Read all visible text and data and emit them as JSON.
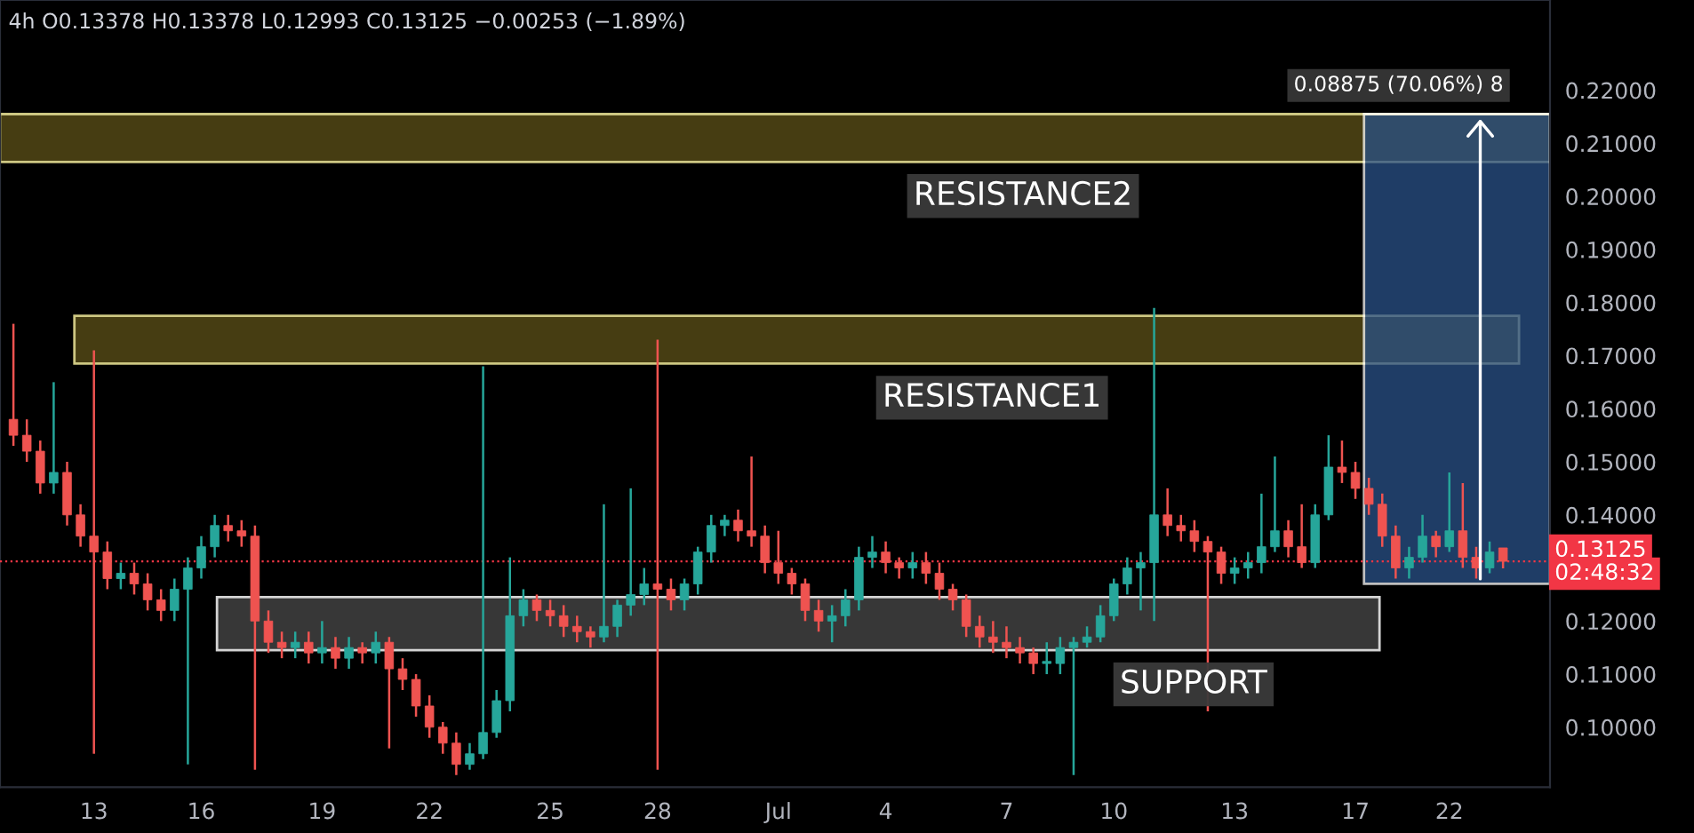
{
  "chart_data": {
    "type": "candlestick",
    "title": "4h O0.13378 H0.13378 L0.12993 C0.13125 −0.00253 (−1.89%)",
    "categories": [
      null,
      null,
      null,
      null,
      null,
      null,
      "13",
      null,
      null,
      null,
      null,
      null,
      null,
      null,
      "16",
      null,
      null,
      null,
      null,
      null,
      null,
      null,
      null,
      "19",
      null,
      null,
      null,
      null,
      null,
      null,
      null,
      "22",
      null,
      null,
      null,
      null,
      null,
      null,
      null,
      null,
      "25",
      null,
      null,
      null,
      null,
      null,
      null,
      null,
      "28",
      null,
      null,
      null,
      null,
      null,
      null,
      null,
      null,
      "Jul",
      null,
      null,
      null,
      null,
      null,
      null,
      null,
      "4",
      null,
      null,
      null,
      null,
      null,
      null,
      null,
      null,
      "7",
      null,
      null,
      null,
      null,
      null,
      null,
      null,
      "10",
      null,
      null,
      null,
      null,
      null,
      null,
      null,
      null,
      "13",
      null,
      null,
      null,
      null,
      null,
      null,
      null,
      null,
      "17",
      null,
      null,
      null,
      null,
      null,
      null,
      "22",
      null,
      null,
      null,
      null
    ],
    "ohlc": [
      [
        0.158,
        0.176,
        0.153,
        0.155
      ],
      [
        0.155,
        0.158,
        0.15,
        0.152
      ],
      [
        0.152,
        0.154,
        0.144,
        0.146
      ],
      [
        0.146,
        0.165,
        0.144,
        0.148
      ],
      [
        0.148,
        0.15,
        0.138,
        0.14
      ],
      [
        0.14,
        0.142,
        0.134,
        0.136
      ],
      [
        0.136,
        0.171,
        0.095,
        0.133
      ],
      [
        0.133,
        0.135,
        0.126,
        0.128
      ],
      [
        0.128,
        0.131,
        0.126,
        0.129
      ],
      [
        0.129,
        0.131,
        0.125,
        0.127
      ],
      [
        0.127,
        0.129,
        0.122,
        0.124
      ],
      [
        0.124,
        0.126,
        0.12,
        0.122
      ],
      [
        0.122,
        0.128,
        0.12,
        0.126
      ],
      [
        0.126,
        0.132,
        0.093,
        0.13
      ],
      [
        0.13,
        0.136,
        0.128,
        0.134
      ],
      [
        0.134,
        0.14,
        0.132,
        0.138
      ],
      [
        0.138,
        0.14,
        0.135,
        0.137
      ],
      [
        0.137,
        0.139,
        0.134,
        0.136
      ],
      [
        0.136,
        0.138,
        0.092,
        0.12
      ],
      [
        0.12,
        0.122,
        0.114,
        0.116
      ],
      [
        0.116,
        0.118,
        0.113,
        0.115
      ],
      [
        0.115,
        0.118,
        0.113,
        0.116
      ],
      [
        0.116,
        0.118,
        0.112,
        0.114
      ],
      [
        0.114,
        0.12,
        0.112,
        0.115
      ],
      [
        0.115,
        0.117,
        0.111,
        0.113
      ],
      [
        0.113,
        0.117,
        0.111,
        0.115
      ],
      [
        0.115,
        0.116,
        0.112,
        0.114
      ],
      [
        0.114,
        0.118,
        0.112,
        0.116
      ],
      [
        0.116,
        0.117,
        0.096,
        0.111
      ],
      [
        0.111,
        0.113,
        0.107,
        0.109
      ],
      [
        0.109,
        0.11,
        0.102,
        0.104
      ],
      [
        0.104,
        0.106,
        0.098,
        0.1
      ],
      [
        0.1,
        0.101,
        0.095,
        0.097
      ],
      [
        0.097,
        0.099,
        0.091,
        0.093
      ],
      [
        0.093,
        0.097,
        0.092,
        0.095
      ],
      [
        0.095,
        0.168,
        0.094,
        0.099
      ],
      [
        0.099,
        0.107,
        0.098,
        0.105
      ],
      [
        0.105,
        0.132,
        0.103,
        0.121
      ],
      [
        0.121,
        0.126,
        0.119,
        0.124
      ],
      [
        0.124,
        0.125,
        0.12,
        0.122
      ],
      [
        0.122,
        0.124,
        0.119,
        0.121
      ],
      [
        0.121,
        0.123,
        0.117,
        0.119
      ],
      [
        0.119,
        0.121,
        0.116,
        0.118
      ],
      [
        0.118,
        0.119,
        0.115,
        0.117
      ],
      [
        0.117,
        0.142,
        0.116,
        0.119
      ],
      [
        0.119,
        0.124,
        0.117,
        0.123
      ],
      [
        0.123,
        0.145,
        0.121,
        0.125
      ],
      [
        0.125,
        0.13,
        0.123,
        0.127
      ],
      [
        0.127,
        0.173,
        0.092,
        0.126
      ],
      [
        0.126,
        0.128,
        0.122,
        0.124
      ],
      [
        0.124,
        0.128,
        0.122,
        0.127
      ],
      [
        0.127,
        0.134,
        0.125,
        0.133
      ],
      [
        0.133,
        0.14,
        0.131,
        0.138
      ],
      [
        0.138,
        0.14,
        0.136,
        0.139
      ],
      [
        0.139,
        0.141,
        0.135,
        0.137
      ],
      [
        0.137,
        0.151,
        0.134,
        0.136
      ],
      [
        0.136,
        0.138,
        0.129,
        0.131
      ],
      [
        0.131,
        0.137,
        0.127,
        0.129
      ],
      [
        0.129,
        0.13,
        0.125,
        0.127
      ],
      [
        0.127,
        0.128,
        0.12,
        0.122
      ],
      [
        0.122,
        0.124,
        0.118,
        0.12
      ],
      [
        0.12,
        0.123,
        0.116,
        0.121
      ],
      [
        0.121,
        0.126,
        0.119,
        0.124
      ],
      [
        0.124,
        0.134,
        0.122,
        0.132
      ],
      [
        0.132,
        0.136,
        0.13,
        0.133
      ],
      [
        0.133,
        0.135,
        0.129,
        0.131
      ],
      [
        0.131,
        0.132,
        0.128,
        0.13
      ],
      [
        0.13,
        0.133,
        0.128,
        0.131
      ],
      [
        0.131,
        0.133,
        0.127,
        0.129
      ],
      [
        0.129,
        0.131,
        0.124,
        0.126
      ],
      [
        0.126,
        0.127,
        0.122,
        0.124
      ],
      [
        0.124,
        0.125,
        0.117,
        0.119
      ],
      [
        0.119,
        0.121,
        0.115,
        0.117
      ],
      [
        0.117,
        0.12,
        0.114,
        0.116
      ],
      [
        0.116,
        0.119,
        0.113,
        0.115
      ],
      [
        0.115,
        0.117,
        0.112,
        0.114
      ],
      [
        0.114,
        0.115,
        0.11,
        0.112
      ],
      [
        0.112,
        0.116,
        0.11,
        0.112
      ],
      [
        0.112,
        0.117,
        0.11,
        0.115
      ],
      [
        0.115,
        0.117,
        0.091,
        0.116
      ],
      [
        0.116,
        0.119,
        0.115,
        0.117
      ],
      [
        0.117,
        0.123,
        0.116,
        0.121
      ],
      [
        0.121,
        0.128,
        0.12,
        0.127
      ],
      [
        0.127,
        0.132,
        0.125,
        0.13
      ],
      [
        0.13,
        0.133,
        0.122,
        0.131
      ],
      [
        0.131,
        0.179,
        0.12,
        0.14
      ],
      [
        0.14,
        0.145,
        0.136,
        0.138
      ],
      [
        0.138,
        0.14,
        0.135,
        0.137
      ],
      [
        0.137,
        0.139,
        0.133,
        0.135
      ],
      [
        0.135,
        0.136,
        0.103,
        0.133
      ],
      [
        0.133,
        0.134,
        0.127,
        0.129
      ],
      [
        0.129,
        0.132,
        0.127,
        0.13
      ],
      [
        0.13,
        0.133,
        0.128,
        0.131
      ],
      [
        0.131,
        0.144,
        0.129,
        0.134
      ],
      [
        0.134,
        0.151,
        0.133,
        0.137
      ],
      [
        0.137,
        0.139,
        0.132,
        0.134
      ],
      [
        0.134,
        0.142,
        0.13,
        0.131
      ],
      [
        0.131,
        0.142,
        0.13,
        0.14
      ],
      [
        0.14,
        0.155,
        0.139,
        0.149
      ],
      [
        0.149,
        0.154,
        0.146,
        0.148
      ],
      [
        0.148,
        0.15,
        0.143,
        0.145
      ],
      [
        0.145,
        0.147,
        0.14,
        0.142
      ],
      [
        0.142,
        0.144,
        0.134,
        0.136
      ],
      [
        0.136,
        0.138,
        0.128,
        0.13
      ],
      [
        0.13,
        0.134,
        0.128,
        0.132
      ],
      [
        0.132,
        0.14,
        0.131,
        0.136
      ],
      [
        0.136,
        0.137,
        0.132,
        0.134
      ],
      [
        0.134,
        0.148,
        0.133,
        0.137
      ],
      [
        0.137,
        0.146,
        0.13,
        0.132
      ],
      [
        0.132,
        0.134,
        0.128,
        0.13
      ],
      [
        0.13,
        0.135,
        0.129,
        0.133
      ],
      [
        0.13378,
        0.13378,
        0.12993,
        0.13125
      ]
    ],
    "ylim": [
      0.0887,
      0.237
    ],
    "yticks": [
      {
        "value": 0.1,
        "label": "0.10000"
      },
      {
        "value": 0.11,
        "label": "0.11000"
      },
      {
        "value": 0.12,
        "label": "0.12000"
      },
      {
        "value": 0.14,
        "label": "0.14000"
      },
      {
        "value": 0.15,
        "label": "0.15000"
      },
      {
        "value": 0.16,
        "label": "0.16000"
      },
      {
        "value": 0.17,
        "label": "0.17000"
      },
      {
        "value": 0.18,
        "label": "0.18000"
      },
      {
        "value": 0.19,
        "label": "0.19000"
      },
      {
        "value": 0.2,
        "label": "0.20000"
      },
      {
        "value": 0.21,
        "label": "0.21000"
      },
      {
        "value": 0.22,
        "label": "0.22000"
      }
    ],
    "bands": [
      {
        "axis": "y",
        "from": 0.2065,
        "to": 0.2155,
        "label": "RESISTANCE2",
        "color": "#4a4113"
      },
      {
        "axis": "y",
        "from": 0.1685,
        "to": 0.1775,
        "label": "RESISTANCE1",
        "color": "#4a4113"
      },
      {
        "axis": "y",
        "from": 0.1145,
        "to": 0.1245,
        "label": "SUPPORT",
        "color": "#3a3a3a"
      },
      {
        "axis": "y",
        "from": 0.127,
        "to": 0.2155,
        "label": "0.08875 (70.06%) 8",
        "color": "#2a5289"
      }
    ],
    "ref_lines": [
      {
        "axis": "y",
        "value": 0.13125,
        "label": "0.13125",
        "color": "#f23645",
        "line_style": "dotted"
      }
    ],
    "annotations": [
      "02:48:32"
    ],
    "grid": false
  }
}
